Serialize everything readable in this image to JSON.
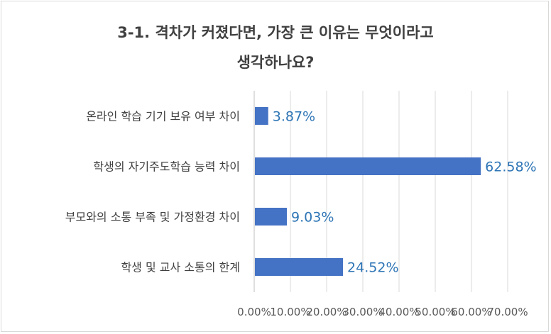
{
  "chart_data": {
    "type": "bar",
    "orientation": "horizontal",
    "title_lines": [
      "3-1. 격차가 커졌다면, 가장 큰 이유는 무엇이라고",
      "생각하나요?"
    ],
    "categories": [
      "온라인 학습 기기 보유 여부 차이",
      "학생의 자기주도학습 능력 차이",
      "부모와의 소통 부족 및 가정환경 차이",
      "학생 및 교사 소통의 한계"
    ],
    "values": [
      3.87,
      62.58,
      9.03,
      24.52
    ],
    "data_labels": [
      "3.87%",
      "62.58%",
      "9.03%",
      "24.52%"
    ],
    "xlim": [
      0,
      70
    ],
    "x_ticks": [
      0,
      10,
      20,
      30,
      40,
      50,
      60,
      70
    ],
    "x_tick_labels": [
      "0.00%",
      "10.00%",
      "20.00%",
      "30.00%",
      "40.00%",
      "50.00%",
      "60.00%",
      "70.00%"
    ],
    "grid": true,
    "legend": "none",
    "bar_color": "#4472c4",
    "label_color": "#2e75b6",
    "grid_color": "#d9d9d9"
  }
}
